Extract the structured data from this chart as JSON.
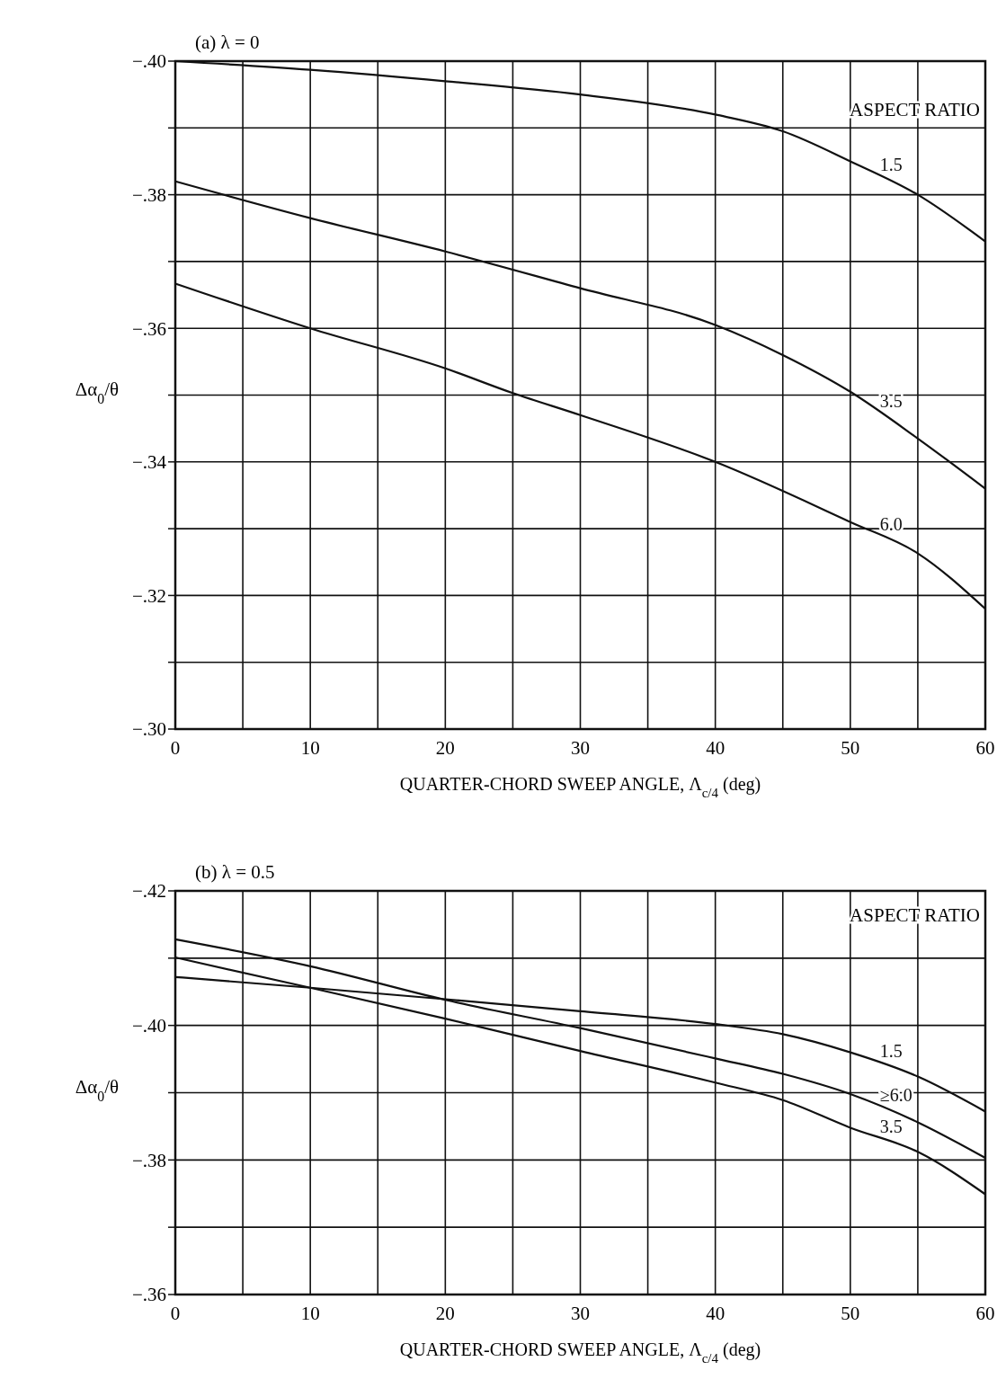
{
  "chart_data": [
    {
      "type": "line",
      "title": "(a) λ = 0",
      "xlabel": "QUARTER-CHORD SWEEP ANGLE, Λ$_{c/4}$   (deg)",
      "ylabel": "Δα$_{0}$/θ",
      "legend_title": "ASPECT RATIO",
      "series": [
        {
          "name": "1.5",
          "color": "#111111",
          "x": [
            0,
            10,
            20,
            30,
            40,
            45,
            50,
            55,
            60
          ],
          "values": [
            -0.4,
            -0.3987,
            -0.397,
            -0.395,
            -0.392,
            -0.3895,
            -0.385,
            -0.38,
            -0.373
          ]
        },
        {
          "name": "3.5",
          "color": "#111111",
          "x": [
            0,
            10,
            20,
            30,
            40,
            45,
            50,
            55,
            60
          ],
          "values": [
            -0.382,
            -0.3765,
            -0.3715,
            -0.366,
            -0.3605,
            -0.356,
            -0.3505,
            -0.3435,
            -0.336
          ]
        },
        {
          "name": "6.0",
          "color": "#111111",
          "x": [
            0,
            10,
            20,
            25,
            30,
            40,
            50,
            55,
            60
          ],
          "values": [
            -0.3667,
            -0.36,
            -0.354,
            -0.3503,
            -0.347,
            -0.34,
            -0.331,
            -0.3263,
            -0.318
          ]
        }
      ],
      "xlim": [
        0,
        60
      ],
      "xticks": [
        0,
        {
          "value": 5,
          "label": null
        },
        10,
        {
          "value": 15,
          "label": null
        },
        20,
        {
          "value": 25,
          "label": null
        },
        30,
        {
          "value": 35,
          "label": null
        },
        40,
        {
          "value": 45,
          "label": null
        },
        50,
        {
          "value": 55,
          "label": null
        },
        60
      ],
      "ylim": [
        -0.3,
        -0.4
      ],
      "yticks": [
        {
          "value": -0.4,
          "label": "−.40"
        },
        {
          "value": -0.39,
          "label": null
        },
        {
          "value": -0.38,
          "label": "−.38"
        },
        {
          "value": -0.37,
          "label": null
        },
        {
          "value": -0.36,
          "label": "−.36"
        },
        {
          "value": -0.35,
          "label": null
        },
        {
          "value": -0.34,
          "label": "−.34"
        },
        {
          "value": -0.33,
          "label": null
        },
        {
          "value": -0.32,
          "label": "−.32"
        },
        {
          "value": -0.31,
          "label": null
        },
        {
          "value": -0.3,
          "label": "−.30"
        }
      ],
      "grid": true
    },
    {
      "type": "line",
      "title": "(b) λ = 0.5",
      "xlabel": "QUARTER-CHORD SWEEP ANGLE, Λ$_{c/4}$   (deg)",
      "ylabel": "Δα$_{0}$/θ",
      "legend_title": "ASPECT RATIO",
      "series": [
        {
          "name": "1.5",
          "color": "#111111",
          "x": [
            0,
            10,
            20,
            30,
            40,
            45,
            50,
            55,
            60
          ],
          "values": [
            -0.4072,
            -0.4056,
            -0.4039,
            -0.4021,
            -0.4002,
            -0.3987,
            -0.396,
            -0.3924,
            -0.3872
          ]
        },
        {
          "name": "≥6.0",
          "color": "#111111",
          "x": [
            0,
            10,
            20,
            30,
            40,
            45,
            50,
            55,
            60
          ],
          "values": [
            -0.4128,
            -0.4088,
            -0.4038,
            -0.3996,
            -0.3951,
            -0.3928,
            -0.3898,
            -0.3856,
            -0.3803
          ]
        },
        {
          "name": "3.5",
          "color": "#111111",
          "x": [
            0,
            10,
            20,
            30,
            40,
            45,
            50,
            55,
            60
          ],
          "values": [
            -0.4101,
            -0.4056,
            -0.401,
            -0.3962,
            -0.3915,
            -0.3889,
            -0.3848,
            -0.3812,
            -0.3749
          ]
        }
      ],
      "xlim": [
        0,
        60
      ],
      "xticks": [
        0,
        {
          "value": 5,
          "label": null
        },
        10,
        {
          "value": 15,
          "label": null
        },
        20,
        {
          "value": 25,
          "label": null
        },
        30,
        {
          "value": 35,
          "label": null
        },
        40,
        {
          "value": 45,
          "label": null
        },
        50,
        {
          "value": 55,
          "label": null
        },
        60
      ],
      "ylim": [
        -0.36,
        -0.42
      ],
      "yticks": [
        {
          "value": -0.42,
          "label": "−.42"
        },
        {
          "value": -0.41,
          "label": null
        },
        {
          "value": -0.4,
          "label": "−.40"
        },
        {
          "value": -0.39,
          "label": null
        },
        {
          "value": -0.38,
          "label": "−.38"
        },
        {
          "value": -0.37,
          "label": null
        },
        {
          "value": -0.36,
          "label": "−.36"
        }
      ],
      "grid": true
    }
  ]
}
